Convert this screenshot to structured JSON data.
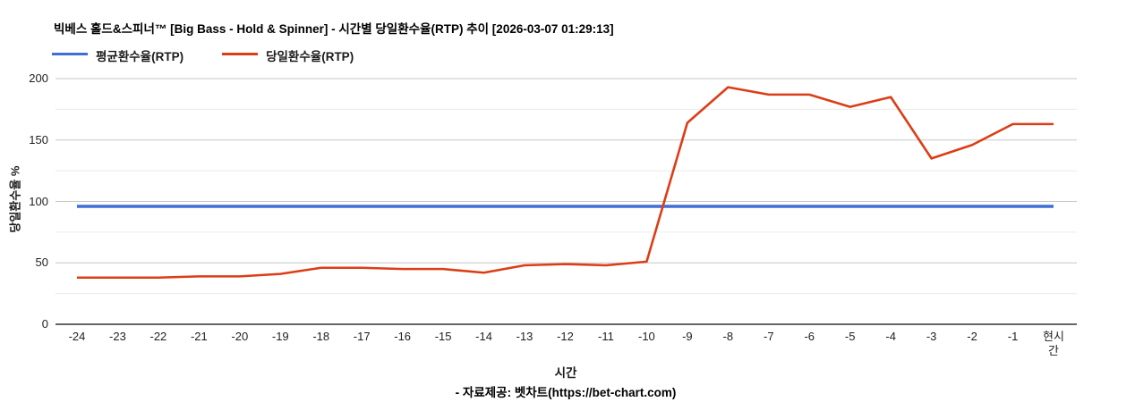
{
  "chart": {
    "title": "빅베스 홀드&스피너™ [Big Bass - Hold & Spinner] - 시간별 당일환수율(RTP) 추이 [2026-03-07 01:29:13]",
    "legend": [
      {
        "label": "평균환수율(RTP)",
        "color": "#3f6fd6"
      },
      {
        "label": "당일환수율(RTP)",
        "color": "#dc3d16"
      }
    ],
    "ylabel": "당일환수율 %",
    "xlabel": "시간",
    "footer": "- 자료제공: 벳차트(https://bet-chart.com)"
  },
  "chart_data": {
    "type": "line",
    "title": "빅베스 홀드&스피너™ [Big Bass - Hold & Spinner] - 시간별 당일환수율(RTP) 추이 [2026-03-07 01:29:13]",
    "categories": [
      "-24",
      "-23",
      "-22",
      "-21",
      "-20",
      "-19",
      "-18",
      "-17",
      "-16",
      "-15",
      "-14",
      "-13",
      "-12",
      "-11",
      "-10",
      "-9",
      "-8",
      "-7",
      "-6",
      "-5",
      "-4",
      "-3",
      "-2",
      "-1",
      "현시간"
    ],
    "series": [
      {
        "name": "평균환수율(RTP)",
        "color": "#3f6fd6",
        "values": [
          96,
          96,
          96,
          96,
          96,
          96,
          96,
          96,
          96,
          96,
          96,
          96,
          96,
          96,
          96,
          96,
          96,
          96,
          96,
          96,
          96,
          96,
          96,
          96,
          96
        ]
      },
      {
        "name": "당일환수율(RTP)",
        "color": "#dc3d16",
        "values": [
          38,
          38,
          38,
          39,
          39,
          41,
          46,
          46,
          45,
          45,
          42,
          48,
          49,
          48,
          51,
          164,
          193,
          187,
          187,
          177,
          185,
          135,
          146,
          163,
          163
        ]
      }
    ],
    "xlabel": "시간",
    "ylabel": "당일환수율 %",
    "ylim": [
      0,
      200
    ],
    "y_major_ticks": [
      0,
      50,
      100,
      150,
      200
    ],
    "y_minor_step": 25,
    "grid": true,
    "legend_position": "top-left",
    "colors": {
      "major_gridline": "#c7c7c7",
      "minor_gridline": "#ebebeb",
      "baseline": "#333333"
    }
  }
}
